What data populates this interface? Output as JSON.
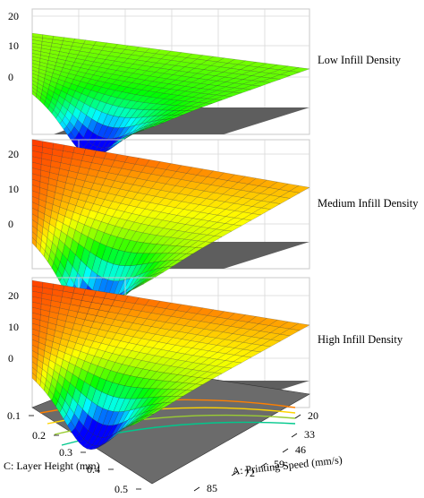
{
  "chart_data": [
    {
      "type": "surface3d",
      "label": "Low Infill Density",
      "z_ticks": [
        "20",
        "10",
        "0"
      ],
      "corner_values": {
        "back_left": 13,
        "back_right": 12,
        "front_left": 13,
        "front_right": 9,
        "min": -10
      },
      "colormap": [
        "#0000ff",
        "#00ffff",
        "#00ff00",
        "#ffff00",
        "#ff0000"
      ]
    },
    {
      "type": "surface3d",
      "label": "Medium Infill Density",
      "z_ticks": [
        "20",
        "10",
        "0"
      ],
      "corner_values": {
        "back_left": 24,
        "back_right": 20,
        "front_left": 22,
        "front_right": 13,
        "min": -8
      }
    },
    {
      "type": "surface3d",
      "label": "High Infill Density",
      "z_ticks": [
        "20",
        "10",
        "0"
      ],
      "corner_values": {
        "back_left": 24,
        "back_right": 21,
        "front_left": 22,
        "front_right": 14,
        "min": -5
      },
      "x_axis": {
        "label": "A: Printing Speed (mm/s)",
        "ticks": [
          "20",
          "33",
          "46",
          "59",
          "72",
          "85"
        ]
      },
      "y_axis": {
        "label": "C: Layer Height (mm)",
        "ticks": [
          "0.1",
          "0.2",
          "0.3",
          "0.4",
          "0.5"
        ]
      }
    }
  ]
}
